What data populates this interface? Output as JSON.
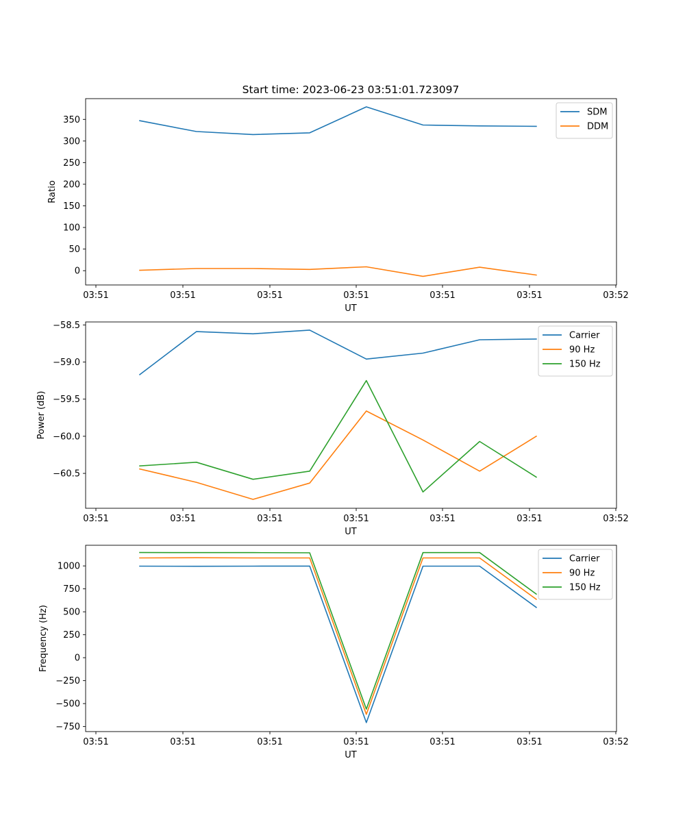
{
  "figure": {
    "title": "Start time: 2023-06-23 03:51:01.723097"
  },
  "chart_data": [
    {
      "type": "line",
      "title": "Start time: 2023-06-23 03:51:01.723097",
      "xlabel": "UT",
      "ylabel": "Ratio",
      "x_tick_labels": [
        "03:51",
        "03:51",
        "03:51",
        "03:51",
        "03:51",
        "03:51",
        "03:52"
      ],
      "ylim": [
        -33,
        398
      ],
      "y_ticks": [
        0,
        50,
        100,
        150,
        200,
        250,
        300,
        350
      ],
      "y_tick_labels": [
        "0",
        "50",
        "100",
        "150",
        "200",
        "250",
        "300",
        "350"
      ],
      "legend_position": "top-right",
      "grid": false,
      "series": [
        {
          "name": "SDM",
          "color": "#1f77b4",
          "values": [
            347,
            322,
            315,
            319,
            379,
            337,
            335,
            334
          ]
        },
        {
          "name": "DDM",
          "color": "#ff7f0e",
          "values": [
            1,
            5,
            5,
            3,
            9,
            -13,
            8,
            -10
          ]
        }
      ]
    },
    {
      "type": "line",
      "title": "",
      "xlabel": "UT",
      "ylabel": "Power (dB)",
      "x_tick_labels": [
        "03:51",
        "03:51",
        "03:51",
        "03:51",
        "03:51",
        "03:51",
        "03:52"
      ],
      "ylim": [
        -60.97,
        -58.46
      ],
      "y_ticks": [
        -60.5,
        -60.0,
        -59.5,
        -59.0,
        -58.5
      ],
      "y_tick_labels": [
        "−60.5",
        "−60.0",
        "−59.5",
        "−59.0",
        "−58.5"
      ],
      "legend_position": "top-right",
      "grid": false,
      "series": [
        {
          "name": "Carrier",
          "color": "#1f77b4",
          "values": [
            -59.17,
            -58.59,
            -58.62,
            -58.57,
            -58.96,
            -58.88,
            -58.7,
            -58.69
          ]
        },
        {
          "name": "90 Hz",
          "color": "#ff7f0e",
          "values": [
            -60.44,
            -60.62,
            -60.85,
            -60.63,
            -59.66,
            -60.05,
            -60.47,
            -60.0
          ]
        },
        {
          "name": "150 Hz",
          "color": "#2ca02c",
          "values": [
            -60.4,
            -60.35,
            -60.58,
            -60.47,
            -59.25,
            -60.75,
            -60.07,
            -60.55
          ]
        }
      ]
    },
    {
      "type": "line",
      "title": "",
      "xlabel": "UT",
      "ylabel": "Frequency (Hz)",
      "x_tick_labels": [
        "03:51",
        "03:51",
        "03:51",
        "03:51",
        "03:51",
        "03:51",
        "03:52"
      ],
      "ylim": [
        -805,
        1225
      ],
      "y_ticks": [
        -750,
        -500,
        -250,
        0,
        250,
        500,
        750,
        1000
      ],
      "y_tick_labels": [
        "−750",
        "−500",
        "−250",
        "0",
        "250",
        "500",
        "750",
        "1000"
      ],
      "legend_position": "top-right",
      "grid": false,
      "series": [
        {
          "name": "Carrier",
          "color": "#1f77b4",
          "values": [
            997,
            996,
            997,
            998,
            -707,
            997,
            997,
            548
          ]
        },
        {
          "name": "90 Hz",
          "color": "#ff7f0e",
          "values": [
            1087,
            1089,
            1087,
            1087,
            -617,
            1087,
            1087,
            636
          ]
        },
        {
          "name": "150 Hz",
          "color": "#2ca02c",
          "values": [
            1146,
            1145,
            1145,
            1143,
            -560,
            1145,
            1145,
            693
          ]
        }
      ]
    }
  ]
}
